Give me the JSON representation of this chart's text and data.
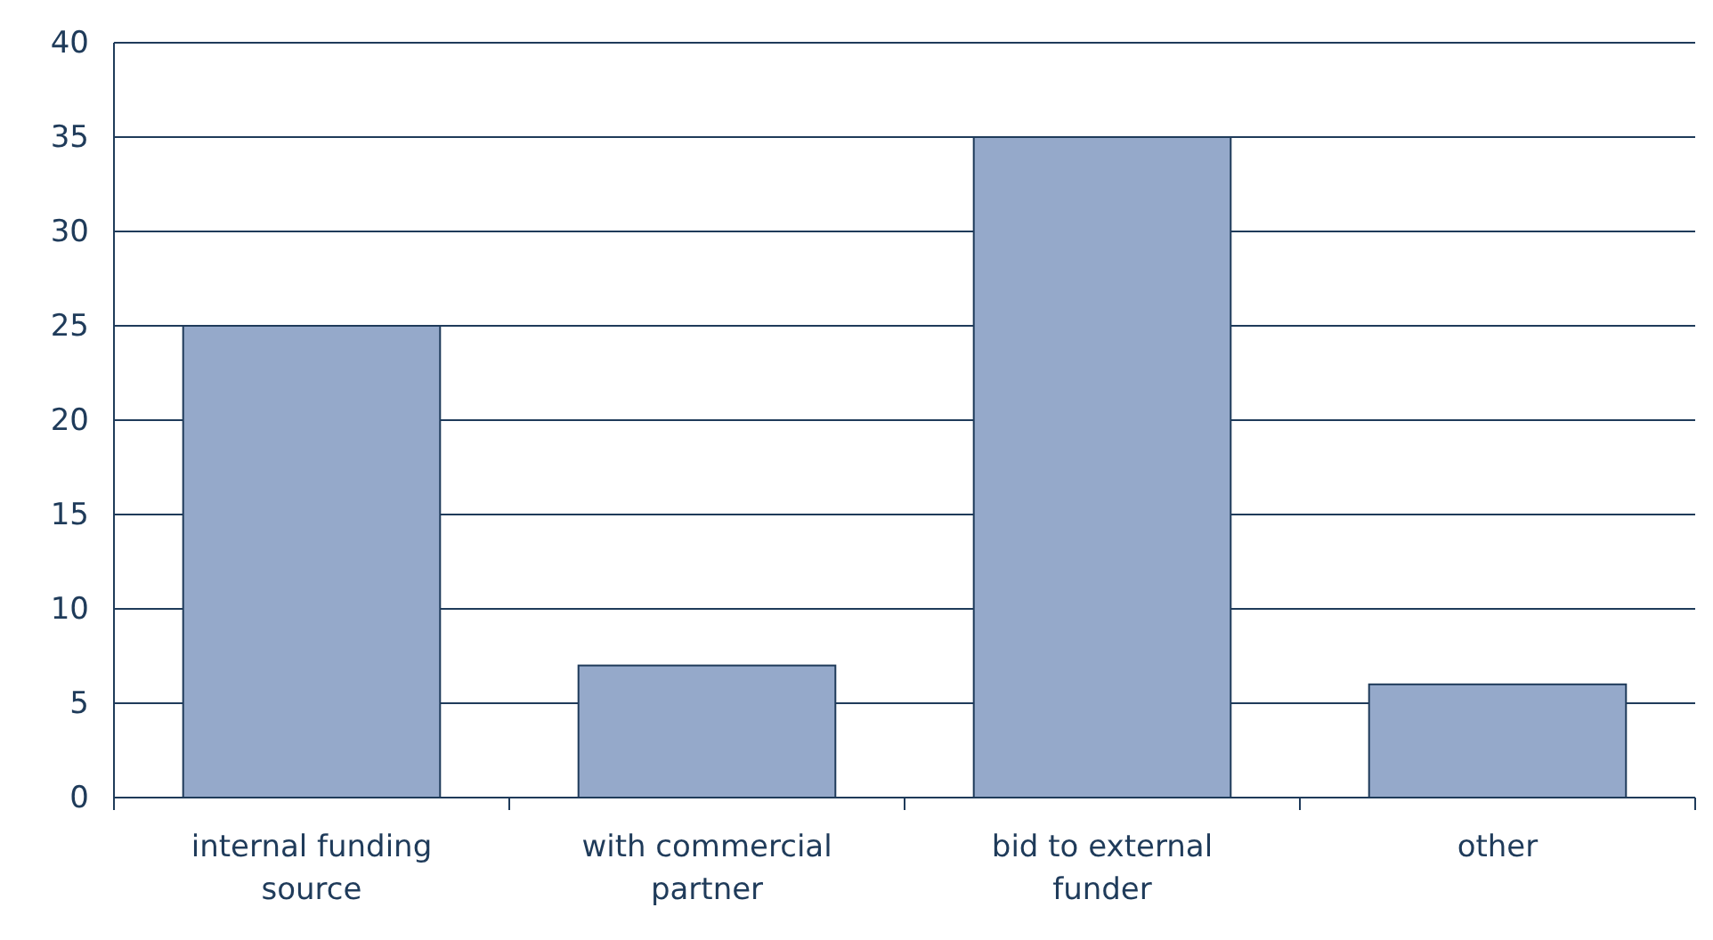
{
  "chart_data": {
    "type": "bar",
    "categories": [
      "internal funding source",
      "with commercial partner",
      "bid to external funder",
      "other"
    ],
    "values": [
      25,
      7,
      35,
      6
    ],
    "color": "#95a9ca",
    "ylim": [
      0,
      40
    ],
    "yticks": [
      0,
      5,
      10,
      15,
      20,
      25,
      30,
      35,
      40
    ],
    "grid": "y"
  }
}
